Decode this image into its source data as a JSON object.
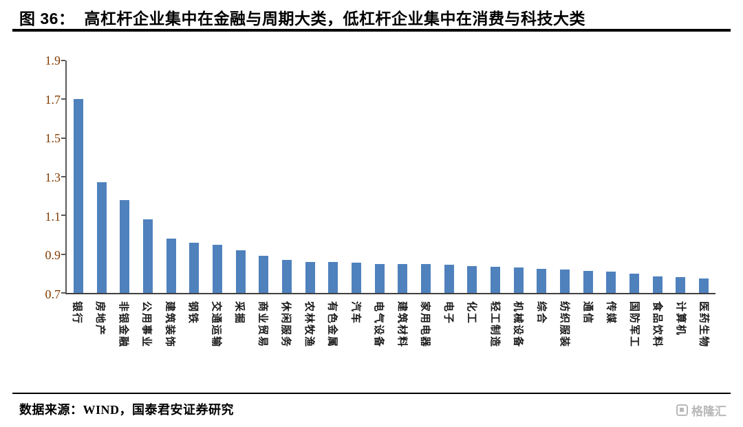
{
  "figure": {
    "label": "图 36：",
    "title": "高杠杆企业集中在金融与周期大类，低杠杆企业集中在消费与科技大类"
  },
  "source": "数据来源：WIND，国泰君安证券研究",
  "brand": {
    "logo_text": "格隆汇"
  },
  "colors": {
    "bar": "#4F81BD",
    "y_tick_label": "#833C00",
    "axis_line": "#595959"
  },
  "chart_data": {
    "type": "bar",
    "title": "高杠杆企业集中在金融与周期大类，低杠杆企业集中在消费与科技大类",
    "xlabel": "",
    "ylabel": "",
    "ylim": [
      0.7,
      1.9
    ],
    "yticks": [
      0.7,
      0.9,
      1.1,
      1.3,
      1.5,
      1.7,
      1.9
    ],
    "grid": false,
    "legend": "none",
    "categories": [
      "银行",
      "房地产",
      "非银金融",
      "公用事业",
      "建筑装饰",
      "钢铁",
      "交通运输",
      "采掘",
      "商业贸易",
      "休闲服务",
      "农林牧渔",
      "有色金属",
      "汽车",
      "电气设备",
      "建筑材料",
      "家用电器",
      "电子",
      "化工",
      "轻工制造",
      "机械设备",
      "综合",
      "纺织服装",
      "通信",
      "传媒",
      "国防军工",
      "食品饮料",
      "计算机",
      "医药生物"
    ],
    "values": [
      1.7,
      1.27,
      1.18,
      1.08,
      0.98,
      0.96,
      0.95,
      0.92,
      0.89,
      0.87,
      0.86,
      0.86,
      0.855,
      0.85,
      0.85,
      0.85,
      0.845,
      0.84,
      0.835,
      0.83,
      0.825,
      0.82,
      0.815,
      0.81,
      0.8,
      0.785,
      0.78,
      0.775
    ]
  }
}
